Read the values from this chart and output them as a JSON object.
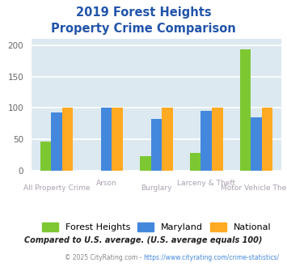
{
  "title_line1": "2019 Forest Heights",
  "title_line2": "Property Crime Comparison",
  "title_color": "#2255aa",
  "categories": [
    "All Property Crime",
    "Arson",
    "Burglary",
    "Larceny & Theft",
    "Motor Vehicle Theft"
  ],
  "series": {
    "Forest Heights": [
      46,
      0,
      23,
      29,
      193
    ],
    "Maryland": [
      93,
      101,
      82,
      96,
      85
    ],
    "National": [
      100,
      100,
      100,
      100,
      100
    ]
  },
  "colors": {
    "Forest Heights": "#7dc832",
    "Maryland": "#4488dd",
    "National": "#ffaa22"
  },
  "ylim": [
    0,
    210
  ],
  "yticks": [
    0,
    50,
    100,
    150,
    200
  ],
  "plot_bg": "#dce9f0",
  "grid_color": "#ffffff",
  "xlabel_color": "#aaa0b0",
  "footer_text": "Compared to U.S. average. (U.S. average equals 100)",
  "footer_color": "#222222",
  "copyright_prefix": "© 2025 CityRating.com - ",
  "copyright_url": "https://www.cityrating.com/crime-statistics/",
  "copyright_color": "#888888",
  "copyright_url_color": "#4488dd",
  "bar_width": 0.22
}
